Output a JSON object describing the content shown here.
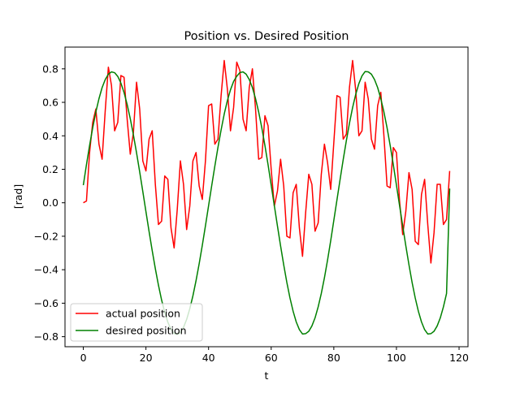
{
  "chart_data": {
    "type": "line",
    "title": "Position vs. Desired Position",
    "xlabel": "t",
    "ylabel": "[rad]",
    "xlim": [
      -5.85,
      122.85
    ],
    "ylim": [
      -0.86,
      0.93
    ],
    "xticks": [
      0,
      20,
      40,
      60,
      80,
      100,
      120
    ],
    "yticks": [
      -0.8,
      -0.6,
      -0.4,
      -0.2,
      0.0,
      0.2,
      0.4,
      0.6,
      0.8
    ],
    "xtick_labels": [
      "0",
      "20",
      "40",
      "60",
      "80",
      "100",
      "120"
    ],
    "ytick_labels": [
      "−0.8",
      "−0.6",
      "−0.4",
      "−0.2",
      "0.0",
      "0.2",
      "0.4",
      "0.6",
      "0.8"
    ],
    "grid": false,
    "legend": "lower-left",
    "series": [
      {
        "name": "actual position",
        "color": "#ff0000",
        "x": [
          0,
          1,
          2,
          3,
          4,
          5,
          6,
          7,
          8,
          9,
          10,
          11,
          12,
          13,
          14,
          15,
          16,
          17,
          18,
          19,
          20,
          21,
          22,
          23,
          24,
          25,
          26,
          27,
          28,
          29,
          30,
          31,
          32,
          33,
          34,
          35,
          36,
          37,
          38,
          39,
          40,
          41,
          42,
          43,
          44,
          45,
          46,
          47,
          48,
          49,
          50,
          51,
          52,
          53,
          54,
          55,
          56,
          57,
          58,
          59,
          60,
          61,
          62,
          63,
          64,
          65,
          66,
          67,
          68,
          69,
          70,
          71,
          72,
          73,
          74,
          75,
          76,
          77,
          78,
          79,
          80,
          81,
          82,
          83,
          84,
          85,
          86,
          87,
          88,
          89,
          90,
          91,
          92,
          93,
          94,
          95,
          96,
          97,
          98,
          99,
          100,
          101,
          102,
          103,
          104,
          105,
          106,
          107,
          108,
          109,
          110,
          111,
          112,
          113,
          114,
          115,
          116,
          117
        ],
        "values": [
          0.0,
          0.01,
          0.3,
          0.48,
          0.56,
          0.35,
          0.26,
          0.55,
          0.81,
          0.7,
          0.43,
          0.48,
          0.76,
          0.75,
          0.5,
          0.29,
          0.42,
          0.72,
          0.56,
          0.25,
          0.19,
          0.38,
          0.43,
          0.11,
          -0.13,
          -0.11,
          0.16,
          0.14,
          -0.15,
          -0.27,
          -0.04,
          0.25,
          0.11,
          -0.16,
          -0.02,
          0.25,
          0.3,
          0.1,
          0.02,
          0.25,
          0.58,
          0.59,
          0.35,
          0.38,
          0.64,
          0.85,
          0.68,
          0.43,
          0.57,
          0.84,
          0.79,
          0.5,
          0.43,
          0.69,
          0.8,
          0.56,
          0.26,
          0.27,
          0.52,
          0.46,
          0.2,
          -0.02,
          0.07,
          0.26,
          0.1,
          -0.2,
          -0.21,
          0.06,
          0.11,
          -0.15,
          -0.32,
          -0.06,
          0.17,
          0.11,
          -0.17,
          -0.12,
          0.17,
          0.35,
          0.24,
          0.08,
          0.36,
          0.64,
          0.63,
          0.38,
          0.41,
          0.69,
          0.85,
          0.67,
          0.4,
          0.43,
          0.72,
          0.62,
          0.38,
          0.32,
          0.58,
          0.66,
          0.4,
          0.1,
          0.09,
          0.33,
          0.3,
          0.01,
          -0.19,
          -0.05,
          0.18,
          0.08,
          -0.23,
          -0.25,
          0.05,
          0.14,
          -0.13,
          -0.36,
          -0.18,
          0.11,
          0.11,
          -0.13,
          -0.1,
          0.19
        ]
      },
      {
        "name": "desired position",
        "color": "#008000",
        "x": [
          0,
          1,
          2,
          3,
          4,
          5,
          6,
          7,
          8,
          9,
          10,
          11,
          12,
          13,
          14,
          15,
          16,
          17,
          18,
          19,
          20,
          21,
          22,
          23,
          24,
          25,
          26,
          27,
          28,
          29,
          30,
          31,
          32,
          33,
          34,
          35,
          36,
          37,
          38,
          39,
          40,
          41,
          42,
          43,
          44,
          45,
          46,
          47,
          48,
          49,
          50,
          51,
          52,
          53,
          54,
          55,
          56,
          57,
          58,
          59,
          60,
          61,
          62,
          63,
          64,
          65,
          66,
          67,
          68,
          69,
          70,
          71,
          72,
          73,
          74,
          75,
          76,
          77,
          78,
          79,
          80,
          81,
          82,
          83,
          84,
          85,
          86,
          87,
          88,
          89,
          90,
          91,
          92,
          93,
          94,
          95,
          96,
          97,
          98,
          99,
          100,
          101,
          102,
          103,
          104,
          105,
          106,
          107,
          108,
          109,
          110,
          111,
          112,
          113,
          114,
          115,
          116,
          117
        ],
        "values": [
          0.105,
          0.227,
          0.342,
          0.448,
          0.542,
          0.622,
          0.688,
          0.736,
          0.768,
          0.782,
          0.777,
          0.755,
          0.715,
          0.659,
          0.587,
          0.502,
          0.405,
          0.298,
          0.185,
          0.067,
          -0.053,
          -0.172,
          -0.286,
          -0.394,
          -0.493,
          -0.581,
          -0.655,
          -0.714,
          -0.756,
          -0.781,
          -0.787,
          -0.775,
          -0.744,
          -0.697,
          -0.633,
          -0.556,
          -0.465,
          -0.364,
          -0.254,
          -0.138,
          -0.018,
          0.102,
          0.219,
          0.331,
          0.435,
          0.53,
          0.61,
          0.675,
          0.725,
          0.756,
          0.778,
          0.782,
          0.768,
          0.736,
          0.688,
          0.622,
          0.542,
          0.448,
          0.342,
          0.227,
          0.105,
          -0.017,
          -0.139,
          -0.258,
          -0.371,
          -0.476,
          -0.569,
          -0.648,
          -0.712,
          -0.758,
          -0.784,
          -0.782,
          -0.768,
          -0.736,
          -0.688,
          -0.622,
          -0.542,
          -0.448,
          -0.342,
          -0.227,
          -0.105,
          0.017,
          0.139,
          0.258,
          0.371,
          0.476,
          0.569,
          0.648,
          0.712,
          0.758,
          0.784,
          0.782,
          0.768,
          0.736,
          0.688,
          0.622,
          0.542,
          0.448,
          0.342,
          0.227,
          0.105,
          -0.017,
          -0.139,
          -0.258,
          -0.371,
          -0.476,
          -0.569,
          -0.648,
          -0.712,
          -0.758,
          -0.784,
          -0.782,
          -0.768,
          -0.736,
          -0.688,
          -0.622,
          -0.542,
          0.085
        ]
      }
    ]
  }
}
